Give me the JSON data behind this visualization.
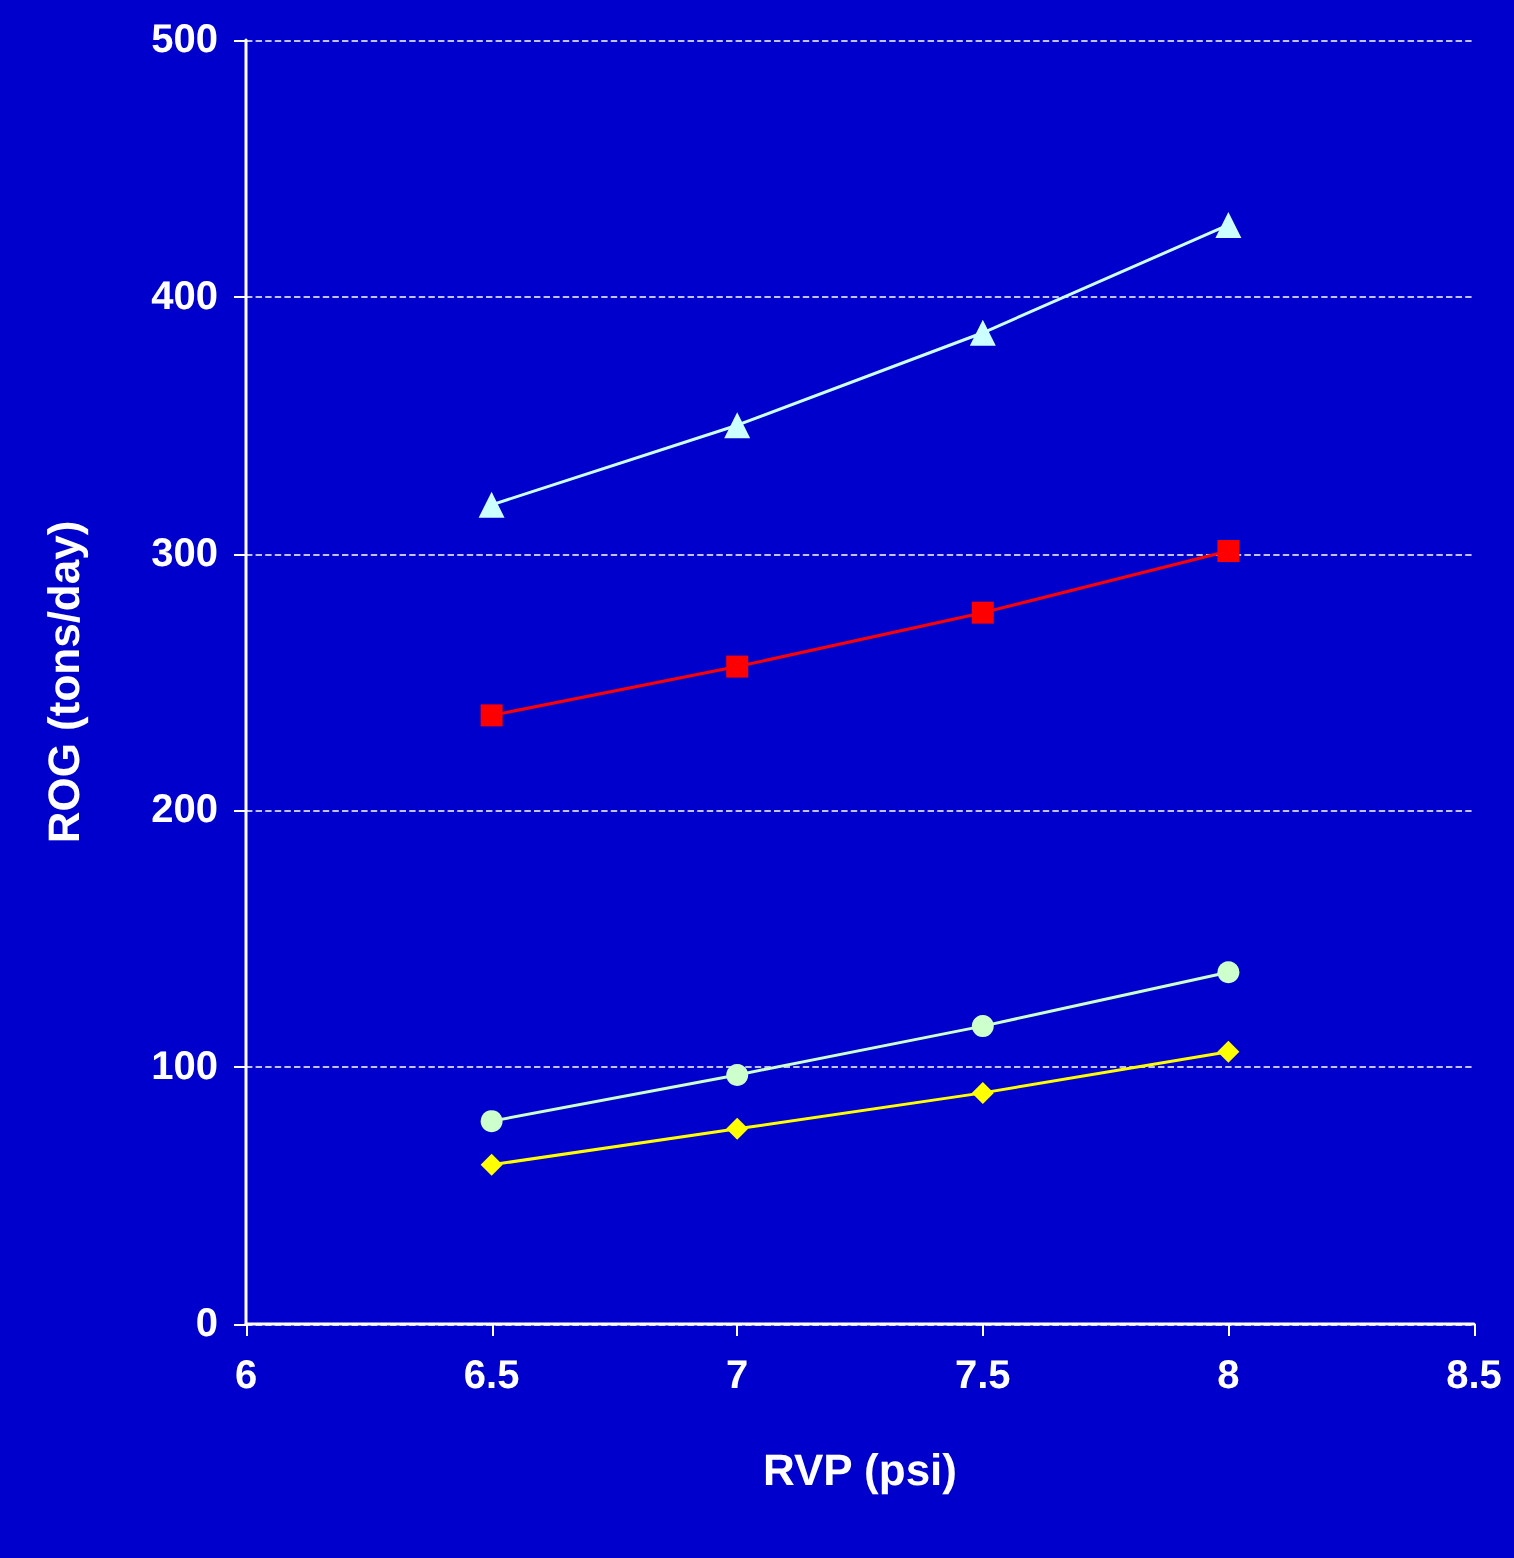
{
  "chart_data": {
    "type": "line",
    "xlabel": "RVP (psi)",
    "ylabel": "ROG (tons/day)",
    "x": [
      6.5,
      7,
      7.5,
      8
    ],
    "series": [
      {
        "color": "#ccffff",
        "marker": "triangle",
        "values": [
          319,
          350,
          386,
          428
        ]
      },
      {
        "color": "#ff0000",
        "marker": "square",
        "values": [
          237,
          256,
          277,
          301
        ]
      },
      {
        "color": "#ccffcc",
        "marker": "circle",
        "values": [
          79,
          97,
          116,
          137
        ]
      },
      {
        "color": "#ffff00",
        "marker": "diamond",
        "values": [
          62,
          76,
          90,
          106
        ]
      }
    ],
    "xlim": [
      6,
      8.5
    ],
    "xticks": [
      6,
      6.5,
      7,
      7.5,
      8,
      8.5
    ],
    "ylim": [
      0,
      500
    ],
    "yticks": [
      0,
      100,
      200,
      300,
      400,
      500
    ],
    "grid": "y"
  }
}
